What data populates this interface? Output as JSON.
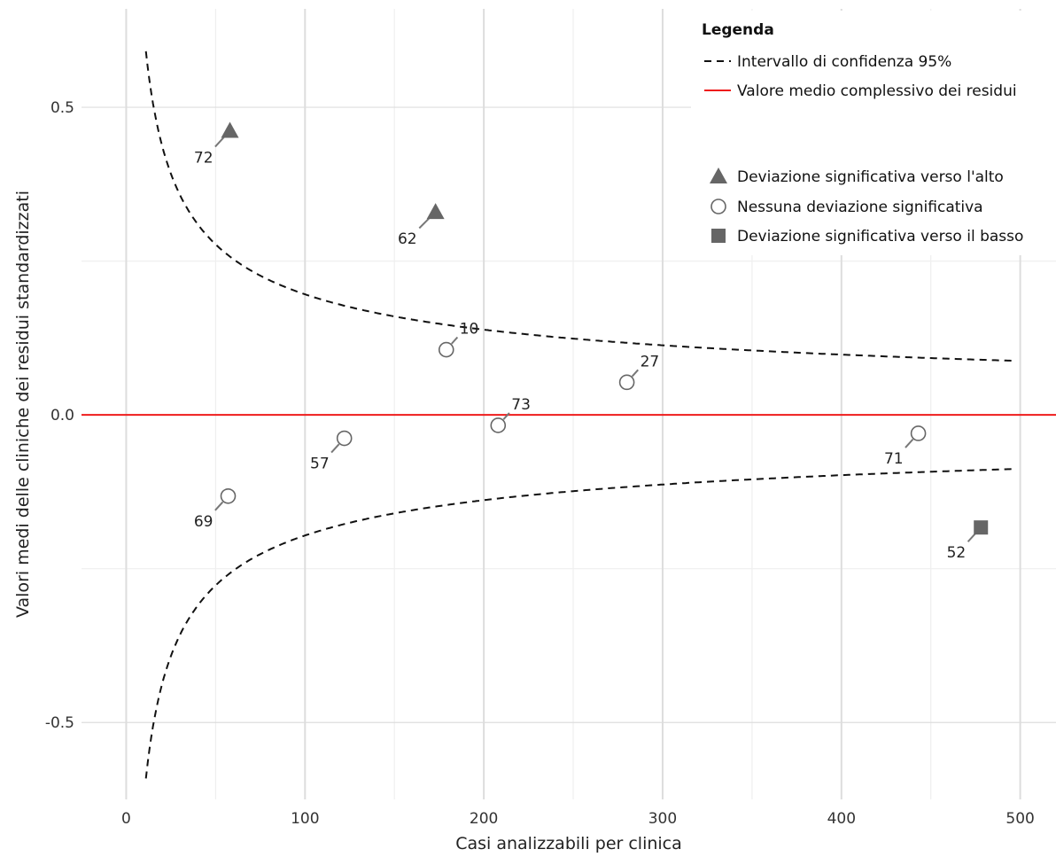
{
  "chart_data": {
    "type": "scatter",
    "title": "",
    "xlabel": "Casi analizzabili per clinica",
    "ylabel": "Valori medi delle cliniche dei residui standardizzati",
    "xlim": [
      -25,
      520
    ],
    "ylim": [
      -0.625,
      0.66
    ],
    "xticks": [
      0,
      100,
      200,
      300,
      400,
      500
    ],
    "xtick_labels": [
      "0",
      "100",
      "200",
      "300",
      "400",
      "500"
    ],
    "yticks": [
      -0.5,
      0.0,
      0.5
    ],
    "ytick_labels": [
      "-0.5",
      "0.0",
      "0.5"
    ],
    "grid": true,
    "colors": {
      "mean_line": "#ee1c1c",
      "ci_line": "#111111",
      "marker": "#666666",
      "grid_major": "#dddddd",
      "grid_minor": "#efefef"
    },
    "mean_line": {
      "y": 0.0
    },
    "confidence_interval": {
      "coefficient": 1.96,
      "x_range": [
        11,
        497
      ]
    },
    "points": [
      {
        "label": "72",
        "x": 58,
        "y": 0.462,
        "category": "up"
      },
      {
        "label": "62",
        "x": 173,
        "y": 0.33,
        "category": "up"
      },
      {
        "label": "10",
        "x": 179,
        "y": 0.106,
        "category": "none"
      },
      {
        "label": "27",
        "x": 280,
        "y": 0.053,
        "category": "none"
      },
      {
        "label": "73",
        "x": 208,
        "y": -0.017,
        "category": "none"
      },
      {
        "label": "57",
        "x": 122,
        "y": -0.038,
        "category": "none"
      },
      {
        "label": "69",
        "x": 57,
        "y": -0.132,
        "category": "none"
      },
      {
        "label": "71",
        "x": 443,
        "y": -0.03,
        "category": "none"
      },
      {
        "label": "52",
        "x": 478,
        "y": -0.183,
        "category": "down"
      }
    ],
    "legend": {
      "title": "Legenda",
      "position": "top-right",
      "lines": [
        {
          "key": "ci",
          "label": "Intervallo di confidenza 95%"
        },
        {
          "key": "mean",
          "label": "Valore medio complessivo dei residui"
        }
      ],
      "markers": [
        {
          "key": "up",
          "label": "Deviazione significativa verso l'alto"
        },
        {
          "key": "none",
          "label": "Nessuna deviazione significativa"
        },
        {
          "key": "down",
          "label": "Deviazione significativa verso il basso"
        }
      ]
    }
  }
}
